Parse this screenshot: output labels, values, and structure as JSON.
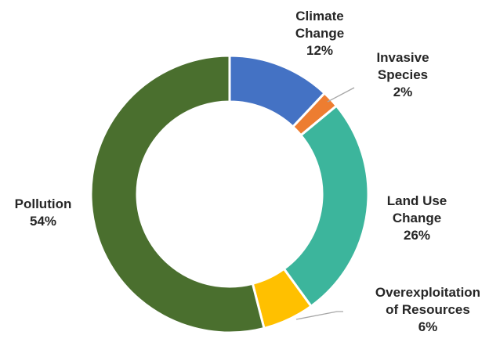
{
  "chart_data": {
    "type": "pie",
    "categories": [
      "Climate Change",
      "Invasive Species",
      "Land Use Change",
      "Overexploitation of Resources",
      "Pollution"
    ],
    "values": [
      12,
      2,
      26,
      6,
      54
    ],
    "value_labels": [
      "12%",
      "2%",
      "26%",
      "6%",
      "54%"
    ],
    "label_lines": [
      [
        "Climate",
        "Change"
      ],
      [
        "Invasive",
        "Species"
      ],
      [
        "Land Use",
        "Change"
      ],
      [
        "Overexploitation",
        "of Resources"
      ],
      [
        "Pollution"
      ]
    ],
    "colors": [
      "#4472C4",
      "#ED7D31",
      "#3CB59C",
      "#FFC000",
      "#4A6F2E"
    ],
    "donut": true,
    "legend": "none"
  }
}
